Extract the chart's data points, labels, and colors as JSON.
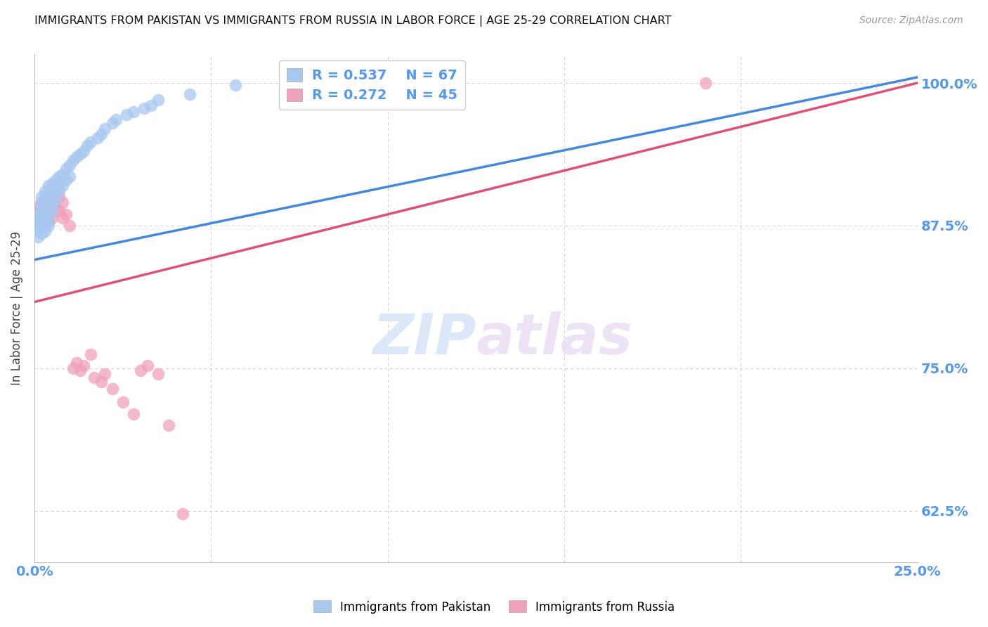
{
  "title": "IMMIGRANTS FROM PAKISTAN VS IMMIGRANTS FROM RUSSIA IN LABOR FORCE | AGE 25-29 CORRELATION CHART",
  "source": "Source: ZipAtlas.com",
  "ylabel": "In Labor Force | Age 25-29",
  "legend_r_pakistan": "R = 0.537",
  "legend_n_pakistan": "N = 67",
  "legend_r_russia": "R = 0.272",
  "legend_n_russia": "N = 45",
  "pakistan_color": "#A8C8F0",
  "russia_color": "#F0A0B8",
  "pakistan_line_color": "#4488DD",
  "russia_line_color": "#E05075",
  "axis_label_color": "#5599EE",
  "watermark_color": "#DCE8F8",
  "pakistan_x": [
    0.001,
    0.001,
    0.001,
    0.001,
    0.001,
    0.001,
    0.002,
    0.002,
    0.002,
    0.002,
    0.002,
    0.002,
    0.002,
    0.002,
    0.002,
    0.003,
    0.003,
    0.003,
    0.003,
    0.003,
    0.003,
    0.003,
    0.003,
    0.003,
    0.004,
    0.004,
    0.004,
    0.004,
    0.004,
    0.004,
    0.004,
    0.005,
    0.005,
    0.005,
    0.005,
    0.005,
    0.006,
    0.006,
    0.006,
    0.006,
    0.007,
    0.007,
    0.007,
    0.008,
    0.008,
    0.009,
    0.009,
    0.01,
    0.01,
    0.011,
    0.012,
    0.013,
    0.014,
    0.015,
    0.016,
    0.018,
    0.019,
    0.02,
    0.022,
    0.023,
    0.026,
    0.028,
    0.031,
    0.033,
    0.035,
    0.044,
    0.057
  ],
  "pakistan_y": [
    0.885,
    0.882,
    0.878,
    0.875,
    0.87,
    0.865,
    0.9,
    0.895,
    0.892,
    0.888,
    0.885,
    0.882,
    0.878,
    0.875,
    0.868,
    0.905,
    0.9,
    0.895,
    0.892,
    0.888,
    0.885,
    0.88,
    0.875,
    0.87,
    0.91,
    0.905,
    0.9,
    0.895,
    0.888,
    0.882,
    0.875,
    0.912,
    0.908,
    0.905,
    0.895,
    0.888,
    0.915,
    0.91,
    0.905,
    0.898,
    0.918,
    0.912,
    0.905,
    0.92,
    0.91,
    0.925,
    0.915,
    0.928,
    0.918,
    0.932,
    0.935,
    0.938,
    0.94,
    0.945,
    0.948,
    0.952,
    0.955,
    0.96,
    0.965,
    0.968,
    0.972,
    0.975,
    0.978,
    0.98,
    0.985,
    0.99,
    0.998
  ],
  "russia_x": [
    0.001,
    0.001,
    0.001,
    0.001,
    0.002,
    0.002,
    0.002,
    0.002,
    0.002,
    0.003,
    0.003,
    0.003,
    0.003,
    0.004,
    0.004,
    0.004,
    0.004,
    0.005,
    0.005,
    0.005,
    0.006,
    0.006,
    0.007,
    0.007,
    0.008,
    0.008,
    0.009,
    0.01,
    0.011,
    0.012,
    0.013,
    0.014,
    0.016,
    0.017,
    0.019,
    0.02,
    0.022,
    0.025,
    0.028,
    0.03,
    0.032,
    0.035,
    0.038,
    0.042,
    0.19
  ],
  "russia_y": [
    0.892,
    0.888,
    0.882,
    0.878,
    0.895,
    0.89,
    0.885,
    0.88,
    0.875,
    0.895,
    0.89,
    0.885,
    0.878,
    0.898,
    0.892,
    0.885,
    0.878,
    0.9,
    0.892,
    0.882,
    0.902,
    0.89,
    0.9,
    0.888,
    0.895,
    0.882,
    0.885,
    0.875,
    0.75,
    0.755,
    0.748,
    0.752,
    0.762,
    0.742,
    0.738,
    0.745,
    0.732,
    0.72,
    0.71,
    0.748,
    0.752,
    0.745,
    0.7,
    0.622,
    1.0
  ],
  "trend_pak_x0": 0.0,
  "trend_pak_x1": 0.25,
  "trend_pak_y0": 0.845,
  "trend_pak_y1": 1.005,
  "trend_rus_x0": 0.0,
  "trend_rus_x1": 0.25,
  "trend_rus_y0": 0.808,
  "trend_rus_y1": 1.0,
  "xlim": [
    0.0,
    0.25
  ],
  "ylim": [
    0.58,
    1.025
  ],
  "xticks": [
    0.0,
    0.05,
    0.1,
    0.15,
    0.2,
    0.25
  ],
  "xticklabels": [
    "0.0%",
    "",
    "",
    "",
    "",
    "25.0%"
  ],
  "yticks": [
    0.625,
    0.75,
    0.875,
    1.0
  ],
  "yticklabels": [
    "62.5%",
    "75.0%",
    "87.5%",
    "100.0%"
  ],
  "background_color": "#FFFFFF",
  "grid_color": "#CCCCCC"
}
